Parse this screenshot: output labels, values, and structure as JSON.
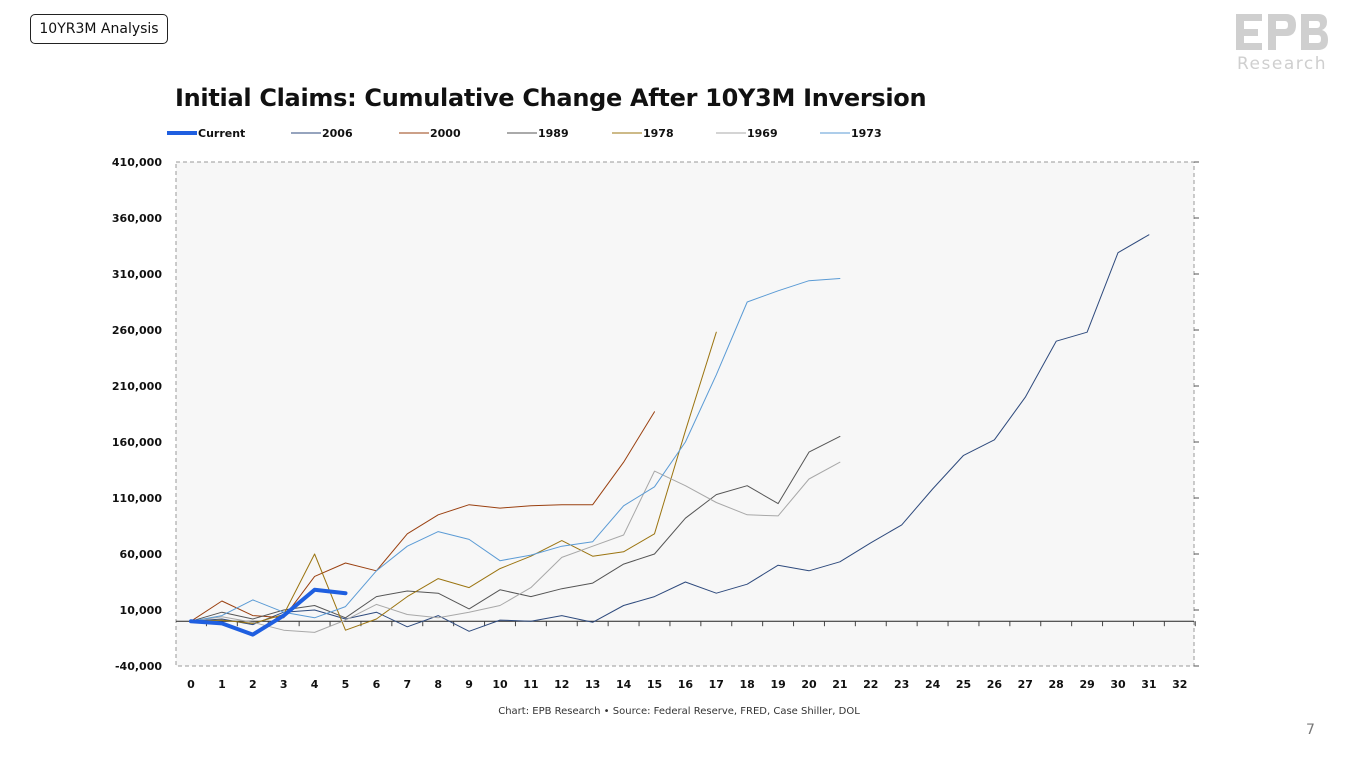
{
  "header": {
    "section_tag": "10YR3M Analysis",
    "page_number": "7"
  },
  "logo": {
    "subtitle": "Research"
  },
  "chart_data": {
    "type": "line",
    "title": "Initial Claims: Cumulative Change After 10Y3M Inversion",
    "source": "Chart: EPB Research •  Source: Federal Reserve, FRED, Case Shiller, DOL",
    "ylim": [
      -40000,
      410000
    ],
    "y_ticks": [
      -40000,
      10000,
      60000,
      110000,
      160000,
      210000,
      260000,
      310000,
      360000,
      410000
    ],
    "y_tick_labels": [
      "-40,000",
      "10,000",
      "60,000",
      "110,000",
      "160,000",
      "210,000",
      "260,000",
      "310,000",
      "360,000",
      "410,000"
    ],
    "x_categories": [
      "0",
      "1",
      "2",
      "3",
      "4",
      "5",
      "6",
      "7",
      "8",
      "9",
      "10",
      "11",
      "12",
      "13",
      "14",
      "15",
      "16",
      "17",
      "18",
      "19",
      "20",
      "21",
      "22",
      "23",
      "24",
      "25",
      "26",
      "27",
      "28",
      "29",
      "30",
      "31",
      "32"
    ],
    "legend_position": "top",
    "grid": false,
    "series": [
      {
        "name": "Current",
        "color": "#1f5fe0",
        "width": 4,
        "values": [
          0,
          -2000,
          -12000,
          5000,
          28000,
          25000
        ]
      },
      {
        "name": "2006",
        "color": "#2e4a7d",
        "width": 1,
        "values": [
          0,
          2000,
          -3000,
          8000,
          10000,
          2000,
          8000,
          -5000,
          5000,
          -9000,
          1000,
          0,
          5000,
          -1000,
          14000,
          22000,
          35000,
          25000,
          33000,
          50000,
          45000,
          53000,
          70000,
          86000,
          118000,
          148000,
          162000,
          200000,
          250000,
          258000,
          329000,
          345000
        ]
      },
      {
        "name": "2000",
        "color": "#9a4010",
        "width": 1,
        "values": [
          0,
          18000,
          5000,
          3000,
          40000,
          52000,
          45000,
          78000,
          95000,
          104000,
          101000,
          103000,
          104000,
          104000,
          142000,
          187000
        ]
      },
      {
        "name": "1989",
        "color": "#555555",
        "width": 1,
        "values": [
          0,
          8000,
          2000,
          10000,
          14000,
          3000,
          22000,
          27000,
          25000,
          11000,
          28000,
          22000,
          29000,
          34000,
          51000,
          60000,
          92000,
          113000,
          121000,
          105000,
          151000,
          165000
        ]
      },
      {
        "name": "1978",
        "color": "#9b7410",
        "width": 1,
        "values": [
          0,
          1000,
          -2000,
          6000,
          60000,
          -8000,
          2000,
          22000,
          38000,
          30000,
          47000,
          58000,
          72000,
          58000,
          62000,
          78000,
          170000,
          258000
        ]
      },
      {
        "name": "1969",
        "color": "#a8a8a8",
        "width": 1,
        "values": [
          0,
          4000,
          -1000,
          -8000,
          -10000,
          1000,
          15000,
          6000,
          3000,
          8000,
          14000,
          30000,
          57000,
          67000,
          77000,
          134000,
          121000,
          106000,
          95000,
          94000,
          127000,
          142000
        ]
      },
      {
        "name": "1973",
        "color": "#5b9bd5",
        "width": 1,
        "values": [
          0,
          5000,
          19000,
          8000,
          3000,
          13000,
          45000,
          67000,
          80000,
          73000,
          54000,
          59000,
          67000,
          71000,
          103000,
          120000,
          160000,
          220000,
          285000,
          295000,
          304000,
          306000
        ]
      }
    ]
  }
}
